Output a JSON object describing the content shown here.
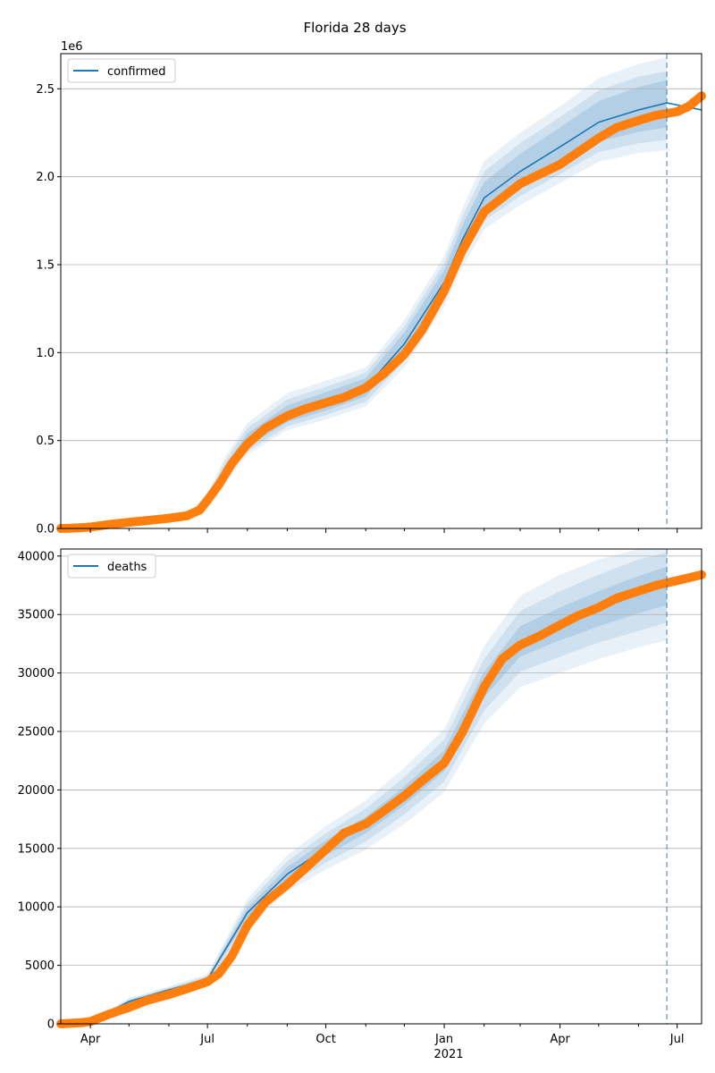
{
  "title": "Florida 28 days",
  "year_label": "2021",
  "x_tick_labels": [
    "Apr",
    "Jul",
    "Oct",
    "Jan",
    "Apr",
    "Jul"
  ],
  "colors": {
    "model": "#1f77b4",
    "observed": "#ff7f0e",
    "grid": "#b0b0b0"
  },
  "chart_data": [
    {
      "type": "line",
      "x_range": [
        "2020-03-09",
        "2021-07-20"
      ],
      "ylim": [
        0,
        2700000
      ],
      "y_offset_label": "1e6",
      "y_tick_values": [
        0,
        500000,
        1000000,
        1500000,
        2000000,
        2500000
      ],
      "y_tick_labels": [
        "0.0",
        "0.5",
        "1.0",
        "1.5",
        "2.0",
        "2.5"
      ],
      "grid": "y",
      "legend": {
        "position": "upper-left",
        "label": "confirmed"
      },
      "forecast_start": "2021-06-23",
      "model_series": {
        "dates": [
          "2020-03-09",
          "2020-04-01",
          "2020-05-01",
          "2020-06-01",
          "2020-06-20",
          "2020-07-01",
          "2020-07-15",
          "2020-08-01",
          "2020-09-01",
          "2020-10-01",
          "2020-11-01",
          "2020-12-01",
          "2021-01-01",
          "2021-01-15",
          "2021-02-01",
          "2021-03-01",
          "2021-04-01",
          "2021-05-01",
          "2021-06-01",
          "2021-06-23"
        ],
        "median": [
          0,
          8000,
          35000,
          58000,
          95000,
          160000,
          330000,
          500000,
          650000,
          720000,
          800000,
          1050000,
          1400000,
          1640000,
          1880000,
          2030000,
          2170000,
          2310000,
          2380000,
          2420000
        ],
        "band_50": [
          [
            0,
            0
          ],
          [
            7000,
            9000
          ],
          [
            32000,
            38000
          ],
          [
            53000,
            63000
          ],
          [
            87000,
            103000
          ],
          [
            145000,
            175000
          ],
          [
            300000,
            360000
          ],
          [
            465000,
            540000
          ],
          [
            605000,
            700000
          ],
          [
            670000,
            775000
          ],
          [
            750000,
            855000
          ],
          [
            990000,
            1115000
          ],
          [
            1340000,
            1470000
          ],
          [
            1575000,
            1720000
          ],
          [
            1800000,
            1970000
          ],
          [
            1940000,
            2130000
          ],
          [
            2070000,
            2280000
          ],
          [
            2200000,
            2430000
          ],
          [
            2255000,
            2510000
          ],
          [
            2280000,
            2550000
          ]
        ],
        "band_90": [
          [
            0,
            0
          ],
          [
            6000,
            10000
          ],
          [
            30000,
            40000
          ],
          [
            50000,
            66000
          ],
          [
            82000,
            108000
          ],
          [
            135000,
            188000
          ],
          [
            280000,
            385000
          ],
          [
            440000,
            570000
          ],
          [
            580000,
            735000
          ],
          [
            645000,
            805000
          ],
          [
            720000,
            885000
          ],
          [
            950000,
            1150000
          ],
          [
            1300000,
            1510000
          ],
          [
            1525000,
            1770000
          ],
          [
            1750000,
            2030000
          ],
          [
            1890000,
            2190000
          ],
          [
            2015000,
            2340000
          ],
          [
            2140000,
            2490000
          ],
          [
            2190000,
            2570000
          ],
          [
            2210000,
            2600000
          ]
        ],
        "band_98": [
          [
            0,
            0
          ],
          [
            5000,
            11000
          ],
          [
            28000,
            42000
          ],
          [
            47000,
            70000
          ],
          [
            78000,
            114000
          ],
          [
            125000,
            200000
          ],
          [
            262000,
            410000
          ],
          [
            420000,
            600000
          ],
          [
            560000,
            770000
          ],
          [
            620000,
            840000
          ],
          [
            695000,
            915000
          ],
          [
            915000,
            1185000
          ],
          [
            1265000,
            1550000
          ],
          [
            1485000,
            1820000
          ],
          [
            1700000,
            2090000
          ],
          [
            1840000,
            2250000
          ],
          [
            1965000,
            2400000
          ],
          [
            2085000,
            2560000
          ],
          [
            2135000,
            2640000
          ],
          [
            2150000,
            2680000
          ]
        ],
        "extended": {
          "dates": [
            "2021-06-23",
            "2021-07-20"
          ],
          "values": [
            2420000,
            2380000
          ]
        }
      },
      "observed_series": {
        "dates": [
          "2020-03-09",
          "2020-03-20",
          "2020-04-01",
          "2020-04-15",
          "2020-05-01",
          "2020-05-15",
          "2020-06-01",
          "2020-06-15",
          "2020-06-25",
          "2020-07-01",
          "2020-07-10",
          "2020-07-20",
          "2020-08-01",
          "2020-08-15",
          "2020-09-01",
          "2020-09-15",
          "2020-10-01",
          "2020-10-15",
          "2020-11-01",
          "2020-11-15",
          "2020-12-01",
          "2020-12-15",
          "2021-01-01",
          "2021-01-15",
          "2021-02-01",
          "2021-02-15",
          "2021-03-01",
          "2021-03-15",
          "2021-04-01",
          "2021-04-15",
          "2021-05-01",
          "2021-05-15",
          "2021-06-01",
          "2021-06-15",
          "2021-07-01",
          "2021-07-10",
          "2021-07-20"
        ],
        "values": [
          0,
          2000,
          8000,
          22000,
          35000,
          45000,
          58000,
          72000,
          105000,
          160000,
          250000,
          370000,
          480000,
          570000,
          640000,
          680000,
          715000,
          745000,
          800000,
          880000,
          990000,
          1130000,
          1350000,
          1580000,
          1800000,
          1880000,
          1960000,
          2010000,
          2070000,
          2140000,
          2220000,
          2280000,
          2320000,
          2350000,
          2370000,
          2400000,
          2460000
        ]
      }
    },
    {
      "type": "line",
      "x_range": [
        "2020-03-09",
        "2021-07-20"
      ],
      "ylim": [
        0,
        40600
      ],
      "y_tick_values": [
        0,
        5000,
        10000,
        15000,
        20000,
        25000,
        30000,
        35000,
        40000
      ],
      "y_tick_labels": [
        "0",
        "5000",
        "10000",
        "15000",
        "20000",
        "25000",
        "30000",
        "35000",
        "40000"
      ],
      "grid": "y",
      "legend": {
        "position": "upper-left",
        "label": "deaths"
      },
      "forecast_start": "2021-06-23",
      "model_series": {
        "dates": [
          "2020-03-09",
          "2020-04-01",
          "2020-05-01",
          "2020-06-01",
          "2020-07-01",
          "2020-08-01",
          "2020-09-01",
          "2020-10-01",
          "2020-11-01",
          "2020-12-01",
          "2021-01-01",
          "2021-02-01",
          "2021-03-01",
          "2021-04-01",
          "2021-05-01",
          "2021-06-01",
          "2021-06-23"
        ],
        "median": [
          0,
          200,
          1900,
          2900,
          3800,
          9500,
          12800,
          15000,
          17000,
          19500,
          22500,
          29000,
          32700,
          34200,
          35500,
          36700,
          37500
        ],
        "band_50": [
          [
            0,
            0
          ],
          [
            180,
            220
          ],
          [
            1800,
            2000
          ],
          [
            2800,
            3000
          ],
          [
            3650,
            3950
          ],
          [
            9100,
            9900
          ],
          [
            12300,
            13400
          ],
          [
            14400,
            15700
          ],
          [
            16300,
            17700
          ],
          [
            18700,
            20300
          ],
          [
            21600,
            23400
          ],
          [
            27900,
            30100
          ],
          [
            31400,
            34000
          ],
          [
            32800,
            35600
          ],
          [
            34000,
            37000
          ],
          [
            35100,
            38300
          ],
          [
            35800,
            39100
          ]
        ],
        "band_90": [
          [
            0,
            0
          ],
          [
            160,
            240
          ],
          [
            1700,
            2100
          ],
          [
            2700,
            3100
          ],
          [
            3500,
            4100
          ],
          [
            8700,
            10300
          ],
          [
            11800,
            13900
          ],
          [
            13800,
            16300
          ],
          [
            15600,
            18400
          ],
          [
            17900,
            21100
          ],
          [
            20700,
            24300
          ],
          [
            26800,
            31200
          ],
          [
            30100,
            35300
          ],
          [
            31400,
            37000
          ],
          [
            32600,
            38400
          ],
          [
            33600,
            39700
          ],
          [
            34300,
            40300
          ]
        ],
        "band_98": [
          [
            0,
            0
          ],
          [
            140,
            260
          ],
          [
            1600,
            2200
          ],
          [
            2600,
            3200
          ],
          [
            3350,
            4250
          ],
          [
            8300,
            10700
          ],
          [
            11300,
            14400
          ],
          [
            13200,
            16900
          ],
          [
            14900,
            19100
          ],
          [
            17100,
            21900
          ],
          [
            19800,
            25200
          ],
          [
            25700,
            32300
          ],
          [
            28800,
            36600
          ],
          [
            30000,
            38400
          ],
          [
            31200,
            39700
          ],
          [
            32200,
            40600
          ],
          [
            32800,
            40600
          ]
        ]
      },
      "observed_series": {
        "dates": [
          "2020-03-09",
          "2020-03-25",
          "2020-04-01",
          "2020-04-15",
          "2020-05-01",
          "2020-05-15",
          "2020-06-01",
          "2020-06-15",
          "2020-07-01",
          "2020-07-10",
          "2020-07-20",
          "2020-08-01",
          "2020-08-15",
          "2020-09-01",
          "2020-09-15",
          "2020-10-01",
          "2020-10-15",
          "2020-11-01",
          "2020-11-15",
          "2020-12-01",
          "2020-12-15",
          "2021-01-01",
          "2021-01-15",
          "2021-02-01",
          "2021-02-15",
          "2021-03-01",
          "2021-03-15",
          "2021-04-01",
          "2021-04-15",
          "2021-05-01",
          "2021-05-15",
          "2021-06-01",
          "2021-06-15",
          "2021-07-01",
          "2021-07-20"
        ],
        "values": [
          0,
          100,
          200,
          800,
          1400,
          2000,
          2500,
          3000,
          3600,
          4300,
          5800,
          8400,
          10400,
          11900,
          13300,
          14900,
          16300,
          17100,
          18200,
          19500,
          20800,
          22300,
          24900,
          28800,
          31200,
          32400,
          33100,
          34100,
          34900,
          35600,
          36400,
          37000,
          37500,
          37900,
          38400
        ]
      }
    }
  ]
}
